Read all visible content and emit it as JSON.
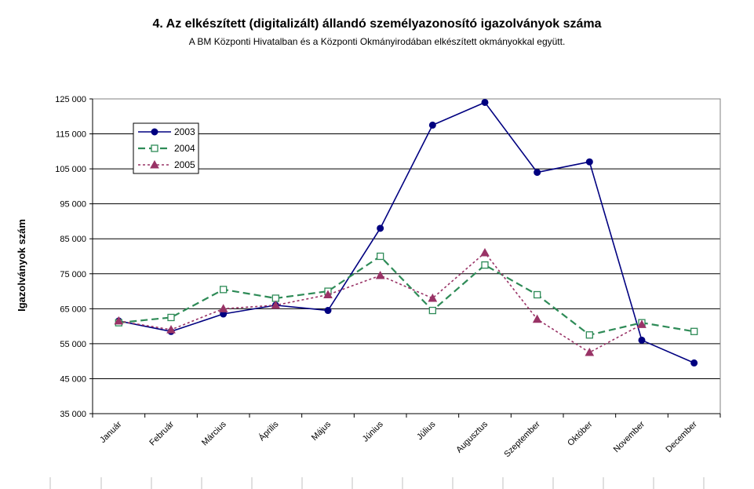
{
  "chart_data": {
    "type": "line",
    "title": "4. Az elkészített (digitalizált) állandó személyazonosító igazolványok száma",
    "subtitle": "A BM Központi Hivatalban és a Központi Okmányirodában elkészített okmányokkal együtt.",
    "ylabel": "Igazolványok szám",
    "xlabel": "",
    "ylim": [
      35000,
      125000
    ],
    "yticks": [
      "35 000",
      "45 000",
      "55 000",
      "65 000",
      "75 000",
      "85 000",
      "95 000",
      "105 000",
      "115 000",
      "125 000"
    ],
    "categories": [
      "Január",
      "Február",
      "Március",
      "Április",
      "Május",
      "Június",
      "Július",
      "Augusztus",
      "Szeptember",
      "Október",
      "November",
      "December"
    ],
    "grid": true,
    "legend_position": "top-left",
    "series": [
      {
        "name": "2003",
        "color": "#000080",
        "marker": "circle",
        "dash": "solid",
        "values": [
          61500,
          58500,
          63500,
          66000,
          64500,
          88000,
          117500,
          124000,
          104000,
          107000,
          56000,
          49500
        ]
      },
      {
        "name": "2004",
        "color": "#2e8b57",
        "marker": "square-open",
        "dash": "dashed",
        "values": [
          61000,
          62500,
          70500,
          68000,
          70000,
          80000,
          64500,
          77500,
          69000,
          57500,
          61000,
          58500
        ]
      },
      {
        "name": "2005",
        "color": "#993366",
        "marker": "triangle",
        "dash": "dotted",
        "values": [
          61500,
          59000,
          65000,
          66000,
          69000,
          74500,
          68000,
          81000,
          62000,
          52500,
          60500,
          null
        ]
      }
    ]
  }
}
